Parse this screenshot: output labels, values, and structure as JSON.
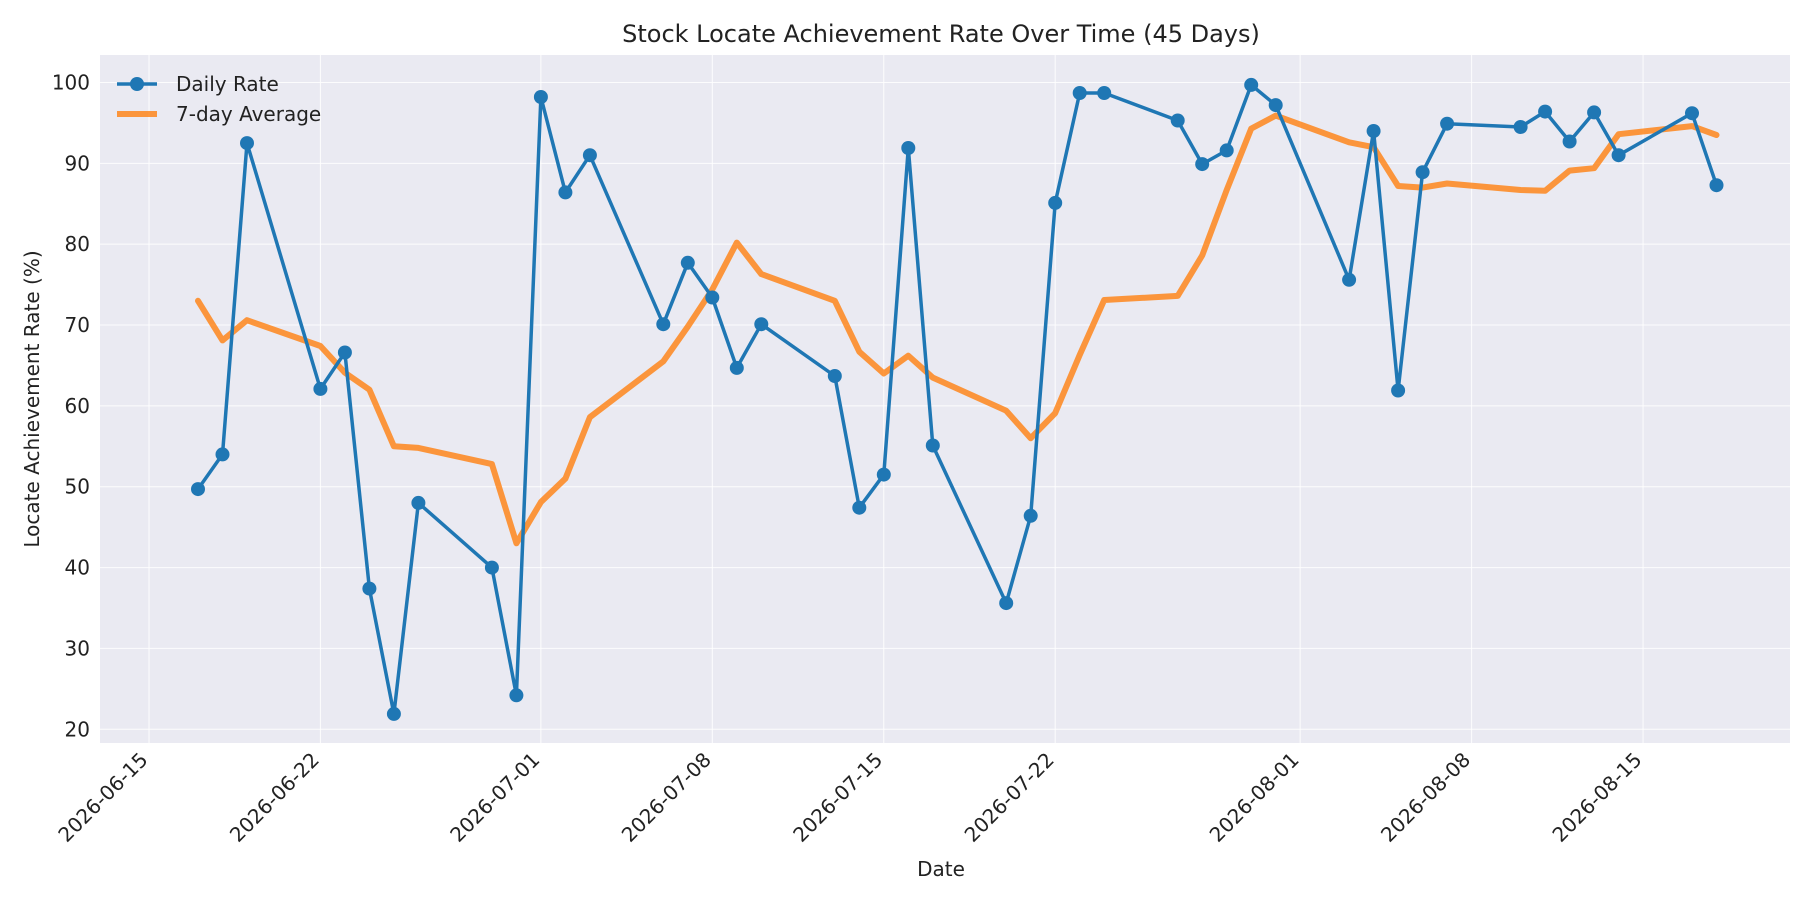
{
  "chart_data": {
    "type": "line",
    "title": "Stock Locate Achievement Rate Over Time (45 Days)",
    "xlabel": "Date",
    "ylabel": "Locate Achievement Rate (%)",
    "ylim": [
      18.3,
      103.4
    ],
    "xlim": [
      "2026-06-13",
      "2026-08-21"
    ],
    "x_ticks": [
      "2026-06-15",
      "2026-06-22",
      "2026-07-01",
      "2026-07-08",
      "2026-07-15",
      "2026-07-22",
      "2026-08-01",
      "2026-08-08",
      "2026-08-15"
    ],
    "y_ticks": [
      20,
      30,
      40,
      50,
      60,
      70,
      80,
      90,
      100
    ],
    "grid": true,
    "legend_position": "upper left",
    "colors": {
      "daily": "#1f77b4",
      "avg": "#ff7f0e",
      "plot_bg": "#eaeaf2"
    },
    "x": [
      "2026-06-17",
      "2026-06-18",
      "2026-06-19",
      "2026-06-22",
      "2026-06-23",
      "2026-06-24",
      "2026-06-25",
      "2026-06-26",
      "2026-06-29",
      "2026-06-30",
      "2026-07-01",
      "2026-07-02",
      "2026-07-03",
      "2026-07-06",
      "2026-07-07",
      "2026-07-08",
      "2026-07-09",
      "2026-07-10",
      "2026-07-13",
      "2026-07-14",
      "2026-07-15",
      "2026-07-16",
      "2026-07-17",
      "2026-07-20",
      "2026-07-21",
      "2026-07-22",
      "2026-07-23",
      "2026-07-24",
      "2026-07-27",
      "2026-07-28",
      "2026-07-29",
      "2026-07-30",
      "2026-07-31",
      "2026-08-03",
      "2026-08-04",
      "2026-08-05",
      "2026-08-06",
      "2026-08-07",
      "2026-08-10",
      "2026-08-11",
      "2026-08-12",
      "2026-08-13",
      "2026-08-14",
      "2026-08-17",
      "2026-08-18"
    ],
    "series": [
      {
        "name": "Daily Rate",
        "values": [
          49.7,
          54.0,
          92.5,
          62.1,
          66.6,
          37.4,
          21.9,
          48.0,
          40.0,
          24.2,
          98.2,
          86.4,
          91.0,
          70.1,
          77.7,
          73.4,
          64.7,
          70.1,
          63.7,
          47.4,
          51.5,
          91.9,
          55.1,
          35.6,
          46.4,
          85.1,
          98.7,
          98.7,
          95.3,
          89.9,
          91.6,
          99.7,
          97.2,
          75.6,
          94.0,
          61.9,
          88.9,
          94.9,
          94.5,
          96.4,
          92.7,
          96.3,
          91.0,
          96.2,
          87.3
        ]
      },
      {
        "name": "7-day Average",
        "values": [
          73.0,
          68.1,
          70.6,
          67.4,
          64.1,
          62.0,
          55.0,
          54.8,
          52.8,
          43.0,
          48.1,
          51.0,
          58.6,
          65.5,
          69.8,
          74.4,
          80.2,
          76.3,
          73.0,
          66.7,
          64.0,
          66.2,
          63.5,
          59.4,
          56.0,
          59.1,
          66.3,
          73.1,
          73.6,
          78.6,
          86.7,
          94.3,
          95.9,
          92.6,
          92.0,
          87.2,
          87.0,
          87.5,
          86.7,
          86.6,
          89.1,
          89.4,
          93.6,
          94.6,
          93.5
        ]
      }
    ]
  }
}
